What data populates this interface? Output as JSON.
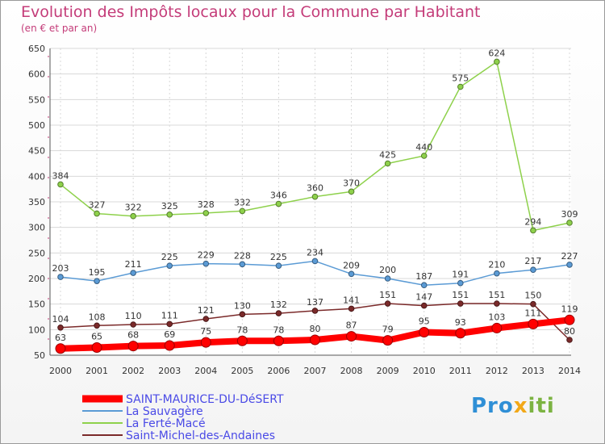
{
  "title": "Evolution des Impôts locaux pour la Commune par Habitant",
  "subtitle": "(en € et par an)",
  "logo": {
    "parts": [
      "Pro",
      "x",
      "iti"
    ],
    "colors": [
      "#2f8fd6",
      "#f2a818",
      "#7cb342"
    ]
  },
  "colors": {
    "title": "#c43c79",
    "legend_text": "#4a4ae6",
    "grid": "#d8d8d8"
  },
  "chart_data": {
    "type": "line",
    "x": [
      "2000",
      "2001",
      "2002",
      "2003",
      "2004",
      "2005",
      "2006",
      "2007",
      "2008",
      "2009",
      "2010",
      "2011",
      "2012",
      "2013",
      "2014"
    ],
    "ylim": [
      50,
      650
    ],
    "yticks": [
      50,
      100,
      150,
      200,
      250,
      300,
      350,
      400,
      450,
      500,
      550,
      600,
      650
    ],
    "grid": true,
    "legend_position": "bottom-left",
    "series": [
      {
        "name": "SAINT-MAURICE-DU-DéSERT",
        "color": "#ff0000",
        "values": [
          63,
          65,
          68,
          69,
          75,
          78,
          78,
          80,
          87,
          79,
          95,
          93,
          103,
          111,
          119
        ],
        "bold": true
      },
      {
        "name": "La Sauvagère",
        "color": "#5b9bd5",
        "values": [
          203,
          195,
          211,
          225,
          229,
          228,
          225,
          234,
          209,
          200,
          187,
          191,
          210,
          217,
          227
        ]
      },
      {
        "name": "La Ferté-Macé",
        "color": "#8ed14b",
        "values": [
          384,
          327,
          322,
          325,
          328,
          332,
          346,
          360,
          370,
          425,
          440,
          575,
          624,
          294,
          309
        ]
      },
      {
        "name": "Saint-Michel-des-Andaines",
        "color": "#7b2a2a",
        "values": [
          104,
          108,
          110,
          111,
          121,
          130,
          132,
          137,
          141,
          151,
          147,
          151,
          151,
          150,
          80
        ]
      }
    ]
  }
}
